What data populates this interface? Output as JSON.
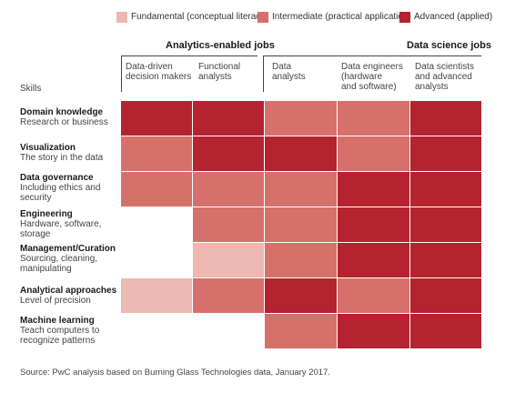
{
  "legend": [
    {
      "label": "Fundamental (conceptual literacy)",
      "color": "#ecb8b1"
    },
    {
      "label": "Intermediate (practical application)",
      "color": "#d6706a"
    },
    {
      "label": "Advanced (applied)",
      "color": "#b4232f"
    }
  ],
  "groups": {
    "analytics": "Analytics-enabled jobs",
    "data_science": "Data science jobs"
  },
  "skills_header": "Skills",
  "footer": "Source: PwC analysis based on Burning Glass Technologies data, January 2017.",
  "chart_data": {
    "type": "heatmap",
    "levels": [
      "Fundamental (conceptual literacy)",
      "Intermediate (practical application)",
      "Advanced (applied)"
    ],
    "columns": [
      {
        "label": "Data-driven\ndecision makers",
        "group": "Analytics-enabled jobs"
      },
      {
        "label": "Functional\nanalysts",
        "group": "Analytics-enabled jobs"
      },
      {
        "label": "Data\nanalysts",
        "group": "Data science jobs"
      },
      {
        "label": "Data engineers\n(hardware\nand software)",
        "group": "Data science jobs"
      },
      {
        "label": "Data scientists\nand advanced\nanalysts",
        "group": "Data science jobs"
      }
    ],
    "rows": [
      {
        "title": "Domain knowledge",
        "subtitle": "Research or business",
        "values": [
          3,
          3,
          2,
          2,
          3
        ]
      },
      {
        "title": "Visualization",
        "subtitle": "The story in the data",
        "values": [
          2,
          3,
          3,
          2,
          3
        ]
      },
      {
        "title": "Data governance",
        "subtitle": "Including ethics and\nsecurity",
        "values": [
          2,
          2,
          2,
          3,
          3
        ]
      },
      {
        "title": "Engineering",
        "subtitle": "Hardware, software,\nstorage",
        "values": [
          0,
          2,
          2,
          3,
          3
        ]
      },
      {
        "title": "Management/Curation",
        "subtitle": "Sourcing, cleaning,\nmanipulating",
        "values": [
          0,
          1,
          2,
          3,
          3
        ]
      },
      {
        "title": "Analytical approaches",
        "subtitle": "Level of precision",
        "values": [
          1,
          2,
          3,
          2,
          3
        ]
      },
      {
        "title": "Machine learning",
        "subtitle": "Teach computers to\nrecognize patterns",
        "values": [
          0,
          0,
          2,
          3,
          3
        ]
      }
    ]
  }
}
